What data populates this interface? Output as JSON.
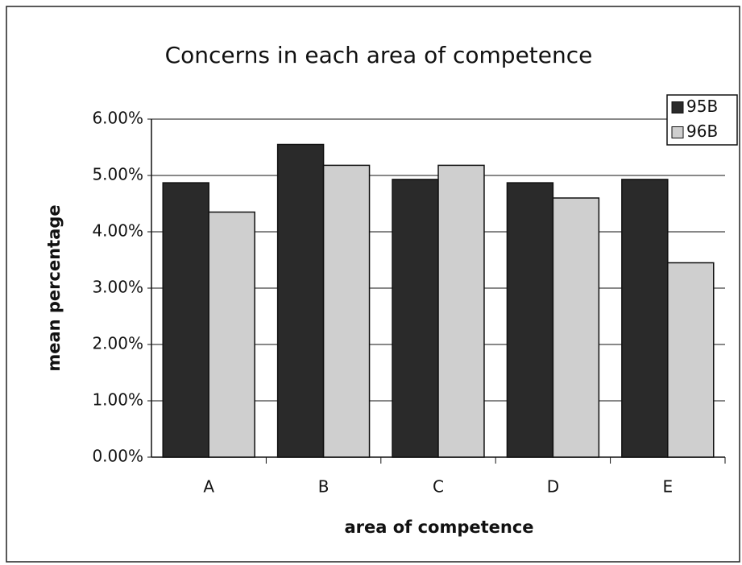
{
  "chart_data": {
    "type": "bar",
    "title": "Concerns in each area of competence",
    "x_label": "area of competence",
    "y_label": "mean percentage",
    "categories": [
      "A",
      "B",
      "C",
      "D",
      "E"
    ],
    "series": [
      {
        "name": "95B",
        "color": "#2a2a2a",
        "values": [
          4.87,
          5.55,
          4.93,
          4.87,
          4.93
        ]
      },
      {
        "name": "96B",
        "color": "#cfcfcf",
        "values": [
          4.35,
          5.18,
          5.18,
          4.6,
          3.45
        ]
      }
    ],
    "ylim": [
      0,
      6
    ],
    "yticks": [
      {
        "value": 0,
        "label": "0.00%"
      },
      {
        "value": 1,
        "label": "1.00%"
      },
      {
        "value": 2,
        "label": "2.00%"
      },
      {
        "value": 3,
        "label": "3.00%"
      },
      {
        "value": 4,
        "label": "4.00%"
      },
      {
        "value": 5,
        "label": "5.00%"
      },
      {
        "value": 6,
        "label": "6.00%"
      }
    ],
    "grid": true,
    "legend": "top-right"
  }
}
